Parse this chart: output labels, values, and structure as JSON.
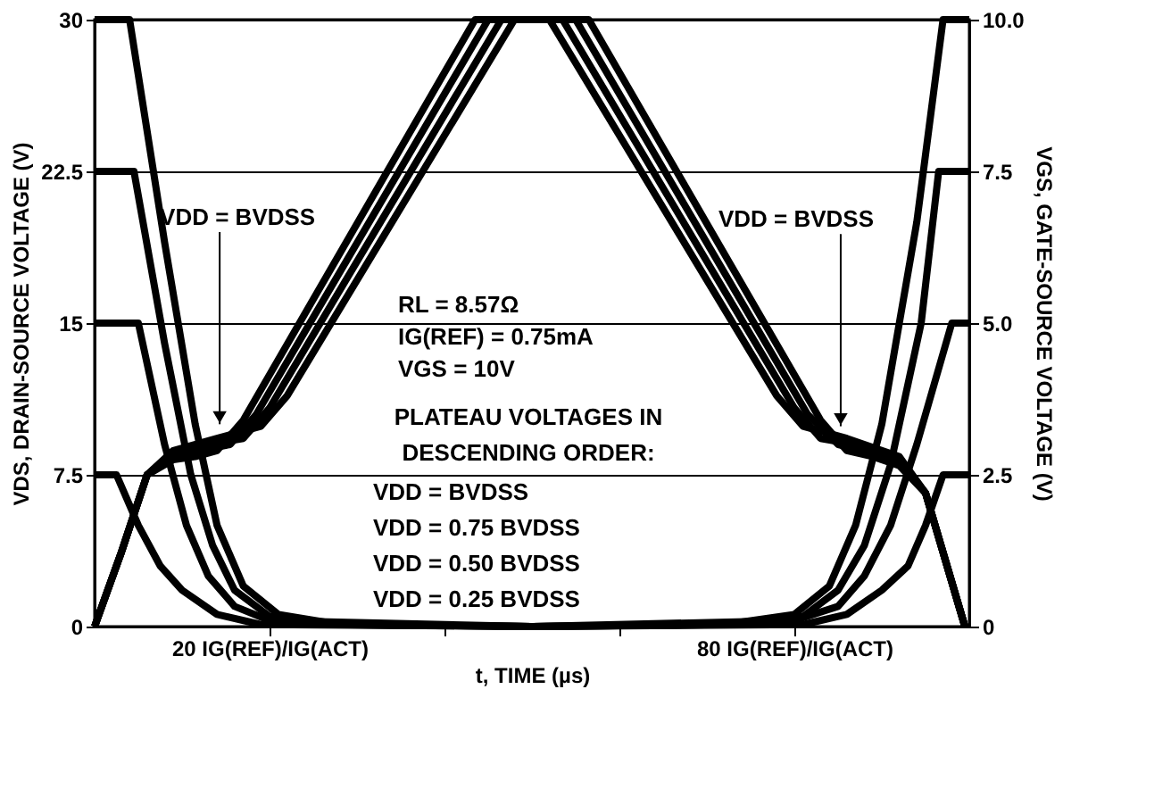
{
  "chart_data": {
    "type": "line",
    "xlabel": "t, TIME (µs)",
    "ylabel": "VDS, DRAIN-SOURCE VOLTAGE (V)",
    "y2label": "VGS, GATE-SOURCE VOLTAGE (V)",
    "xlim": [
      0,
      100
    ],
    "xticks": [
      {
        "value": 20,
        "label": "20 IG(REF)/IG(ACT)"
      },
      {
        "value": 40,
        "label": null
      },
      {
        "value": 60,
        "label": null
      },
      {
        "value": 80,
        "label": "80 IG(REF)/IG(ACT)"
      }
    ],
    "ylim": [
      0,
      30
    ],
    "yticks": [
      0,
      7.5,
      15,
      22.5,
      30
    ],
    "y2lim": [
      0,
      10
    ],
    "y2ticks": [
      0,
      2.5,
      {
        "value": 5,
        "label": "5.0"
      },
      7.5,
      {
        "value": 10,
        "label": "10.0"
      }
    ],
    "grid": "y",
    "legend": false,
    "marker": "none",
    "line_style": "solid",
    "series": [
      {
        "color": "#000000",
        "x": [
          0,
          4,
          8,
          11.5,
          14,
          17,
          21,
          28,
          50,
          72,
          80,
          84,
          87,
          90,
          94,
          97,
          100
        ],
        "values": [
          30,
          30,
          19,
          10,
          5,
          2,
          0.6,
          0.1,
          0,
          0.1,
          0.6,
          2,
          5,
          10,
          20,
          30,
          30
        ]
      },
      {
        "color": "#000000",
        "x": [
          0,
          4.5,
          8,
          11,
          13.5,
          16,
          20,
          27,
          50,
          73,
          81,
          85,
          88,
          91,
          94.5,
          96.5,
          100
        ],
        "values": [
          22.5,
          22.5,
          14,
          7.5,
          4,
          1.8,
          0.5,
          0.1,
          0,
          0.1,
          0.5,
          1.8,
          4,
          8,
          15,
          22.5,
          22.5
        ]
      },
      {
        "color": "#000000",
        "x": [
          0,
          5,
          8,
          10.5,
          13,
          16,
          20,
          50,
          80,
          85,
          88,
          91,
          94,
          98,
          100
        ],
        "values": [
          15,
          15,
          9,
          5,
          2.5,
          1,
          0.3,
          0,
          0.3,
          1,
          2.5,
          5,
          9,
          15,
          15
        ]
      },
      {
        "color": "#000000",
        "x": [
          0,
          2.5,
          5,
          7.5,
          10,
          14,
          19,
          50,
          81,
          86,
          90,
          93,
          95,
          97,
          100
        ],
        "values": [
          7.5,
          7.5,
          5,
          3,
          1.8,
          0.6,
          0.1,
          0,
          0.1,
          0.6,
          1.8,
          3,
          5,
          7.5,
          7.5
        ]
      },
      {
        "color": "#000000",
        "axis": "y2",
        "x": [
          0,
          3,
          6,
          9,
          14,
          19,
          22,
          48,
          52,
          78,
          81,
          86,
          92,
          95,
          99.5
        ],
        "values": [
          0,
          1.2,
          2.5,
          2.9,
          3.1,
          3.3,
          3.8,
          10,
          10,
          3.8,
          3.3,
          3.1,
          2.8,
          2.2,
          0
        ]
      },
      {
        "color": "#000000",
        "axis": "y2",
        "x": [
          0,
          3,
          6,
          9,
          13,
          17,
          20,
          46.5,
          53.5,
          80,
          83,
          87,
          92,
          95,
          99.5
        ],
        "values": [
          0,
          1.2,
          2.5,
          2.85,
          3.0,
          3.1,
          3.6,
          10,
          10,
          3.6,
          3.1,
          3.0,
          2.75,
          2.2,
          0
        ]
      },
      {
        "color": "#000000",
        "axis": "y2",
        "x": [
          0,
          3,
          6,
          9,
          12,
          15.5,
          18.5,
          45,
          55,
          81.5,
          85,
          88,
          92,
          95,
          99.5
        ],
        "values": [
          0,
          1.2,
          2.5,
          2.8,
          2.9,
          3.0,
          3.5,
          10,
          10,
          3.5,
          3.0,
          2.9,
          2.7,
          2.2,
          0
        ]
      },
      {
        "color": "#000000",
        "axis": "y2",
        "x": [
          0,
          3,
          6,
          9,
          11.5,
          14,
          17,
          43.5,
          56.5,
          83,
          86,
          89,
          92,
          95,
          99.5
        ],
        "values": [
          0,
          1.2,
          2.5,
          2.75,
          2.8,
          2.9,
          3.4,
          10,
          10,
          3.4,
          2.9,
          2.8,
          2.65,
          2.2,
          0
        ]
      }
    ],
    "annotations": [
      {
        "text": "VDD = BVDSS",
        "x": 14.3,
        "y": 10
      },
      {
        "text": "VDD = BVDSS",
        "x": 85.3,
        "y": 9.9
      },
      "RL = 8.57Ω",
      "IG(REF) = 0.75mA",
      "VGS = 10V",
      "PLATEAU VOLTAGES IN",
      "DESCENDING ORDER:",
      "VDD = BVDSS",
      "VDD = 0.75 BVDSS",
      "VDD = 0.50 BVDSS",
      "VDD = 0.25 BVDSS"
    ]
  }
}
